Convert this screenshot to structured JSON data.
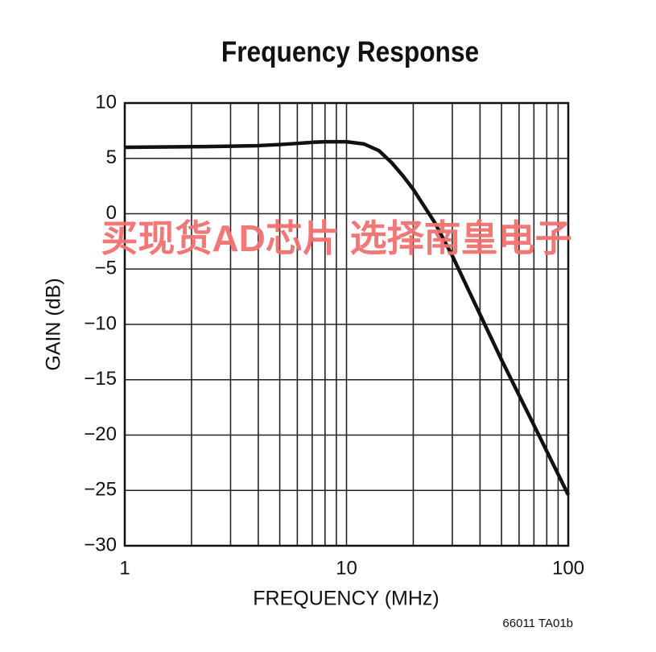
{
  "chart_data": {
    "type": "line",
    "title": "Frequency Response",
    "x_label": "FREQUENCY (MHz)",
    "y_label": "GAIN (dB)",
    "log_x": true,
    "grid": true,
    "xlim": [
      1,
      100
    ],
    "xticks": [
      1,
      10,
      100
    ],
    "xminor": [
      2,
      3,
      4,
      5,
      6,
      7,
      8,
      9,
      20,
      30,
      40,
      50,
      60,
      70,
      80,
      90
    ],
    "ylim": [
      -30,
      10
    ],
    "yticks": [
      {
        "value": -30,
        "label": "−30"
      },
      {
        "value": -25,
        "label": "−25"
      },
      {
        "value": -20,
        "label": "−20"
      },
      {
        "value": -15,
        "label": "−15"
      },
      {
        "value": -10,
        "label": "−10"
      },
      {
        "value": -5,
        "label": "−5"
      },
      0,
      5,
      10
    ],
    "series": [
      {
        "color": "#111111",
        "x": [
          1,
          2,
          3,
          4,
          5,
          6,
          7,
          8,
          10,
          12,
          14,
          16,
          18,
          20,
          25,
          30,
          40,
          50,
          70,
          100
        ],
        "values": [
          6.0,
          6.05,
          6.1,
          6.15,
          6.25,
          6.35,
          6.45,
          6.5,
          6.5,
          6.3,
          5.7,
          4.6,
          3.4,
          2.2,
          -0.8,
          -3.8,
          -9.1,
          -13.2,
          -19.1,
          -25.4
        ]
      }
    ],
    "watermark": "买现货AD芯片 选择南皇电子",
    "footnote": "66011 TA01b"
  }
}
